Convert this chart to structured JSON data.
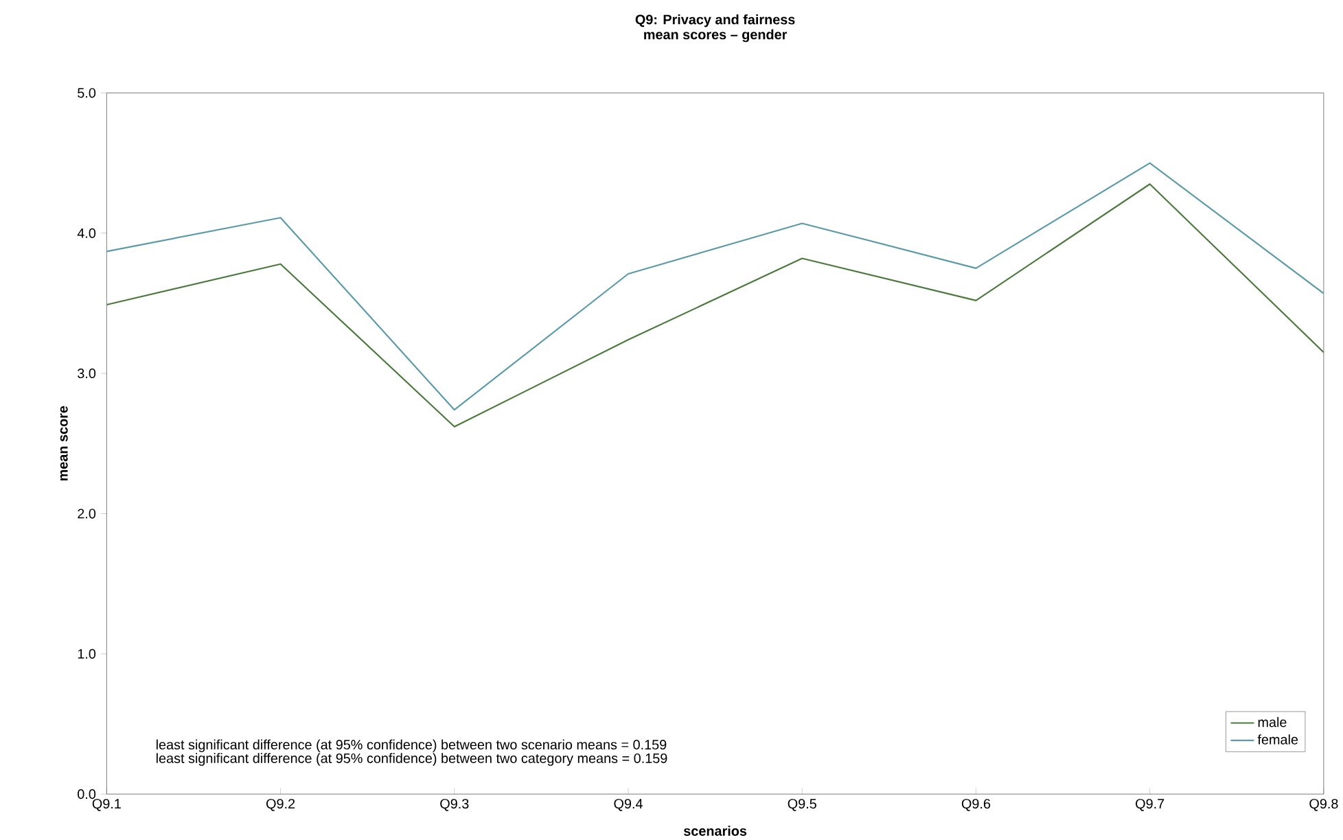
{
  "chart_data": {
    "type": "line",
    "title": "Q9: Privacy and fairness",
    "subtitle": "mean scores – gender",
    "xlabel": "scenarios",
    "ylabel": "mean score",
    "categories": [
      "Q9.1",
      "Q9.2",
      "Q9.3",
      "Q9.4",
      "Q9.5",
      "Q9.6",
      "Q9.7",
      "Q9.8"
    ],
    "series": [
      {
        "name": "male",
        "color": "#4a7a3c",
        "values": [
          3.49,
          3.78,
          2.62,
          3.24,
          3.82,
          3.52,
          4.35,
          3.15
        ]
      },
      {
        "name": "female",
        "color": "#5a9aaa",
        "values": [
          3.87,
          4.11,
          2.74,
          3.71,
          4.07,
          3.75,
          4.5,
          3.57
        ]
      }
    ],
    "ylim": [
      0,
      5
    ],
    "yticks": [
      {
        "value": 0,
        "label": "0.0"
      },
      {
        "value": 1,
        "label": "1.0"
      },
      {
        "value": 2,
        "label": "2.0"
      },
      {
        "value": 3,
        "label": "3.0"
      },
      {
        "value": 4,
        "label": "4.0"
      },
      {
        "value": 5,
        "label": "5.0"
      }
    ],
    "annotations": [
      "least significant difference (at 95% confidence) between two scenario means = 0.159",
      "least significant difference (at 95% confidence) between two category means = 0.159"
    ],
    "legend": "bottom right",
    "marker": "none",
    "line_style": "solid",
    "grid": false
  }
}
